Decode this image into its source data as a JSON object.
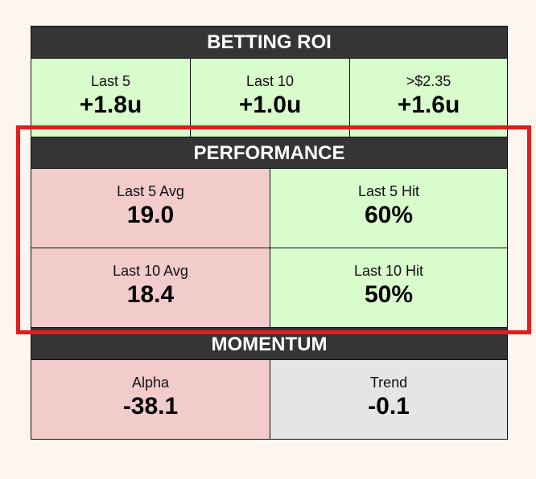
{
  "roi": {
    "title": "BETTING ROI",
    "cells": [
      {
        "label": "Last 5",
        "value": "+1.8u"
      },
      {
        "label": "Last 10",
        "value": "+1.0u"
      },
      {
        "label": ">$2.35",
        "value": "+1.6u"
      }
    ]
  },
  "performance": {
    "title": "PERFORMANCE",
    "cells": [
      {
        "label": "Last 5 Avg",
        "value": "19.0"
      },
      {
        "label": "Last 5 Hit",
        "value": "60%"
      },
      {
        "label": "Last 10 Avg",
        "value": "18.4"
      },
      {
        "label": "Last 10 Hit",
        "value": "50%"
      }
    ]
  },
  "momentum": {
    "title": "MOMENTUM",
    "cells": [
      {
        "label": "Alpha",
        "value": "-38.1"
      },
      {
        "label": "Trend",
        "value": "-0.1"
      }
    ]
  },
  "colors": {
    "positive": "#d8fccb",
    "negative": "#f2cbcb",
    "neutral": "#e5e5e5",
    "header": "#353535",
    "highlight": "#e31c1c"
  }
}
